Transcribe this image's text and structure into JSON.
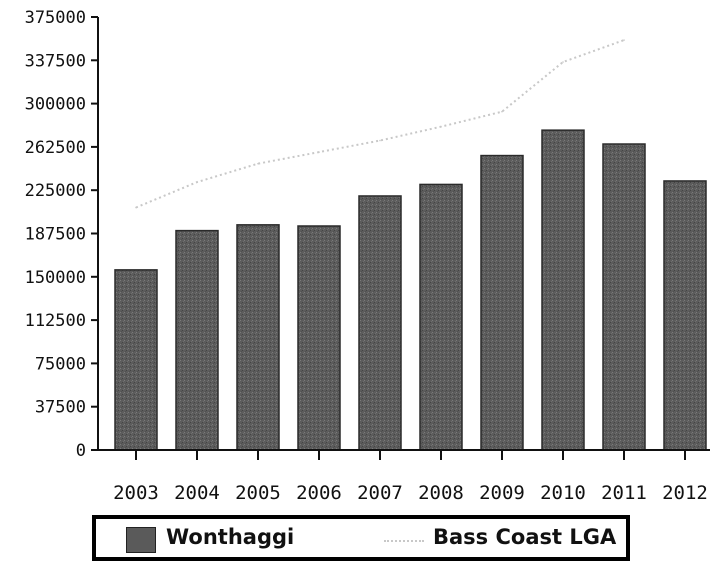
{
  "chart_data": {
    "type": "bar",
    "title": "",
    "xlabel": "",
    "ylabel": "",
    "categories": [
      "2003",
      "2004",
      "2005",
      "2006",
      "2007",
      "2008",
      "2009",
      "2010",
      "2011",
      "2012"
    ],
    "ylim": [
      0,
      375000
    ],
    "yticks": [
      "0",
      "37500",
      "75000",
      "112500",
      "150000",
      "187500",
      "225000",
      "262500",
      "300000",
      "337500",
      "375000"
    ],
    "grid": false,
    "legend_position": "bottom",
    "series": [
      {
        "name": "Wonthaggi",
        "type": "bar",
        "color": "#5a5a5a",
        "values": [
          156000,
          190000,
          195000,
          194000,
          220000,
          230000,
          255000,
          277000,
          265000,
          233000
        ]
      },
      {
        "name": "Bass Coast LGA",
        "type": "line",
        "style": "dotted",
        "color": "#c8c8c8",
        "values": [
          210000,
          232000,
          248000,
          258000,
          268000,
          280000,
          293000,
          336000,
          355000,
          null
        ]
      }
    ]
  }
}
